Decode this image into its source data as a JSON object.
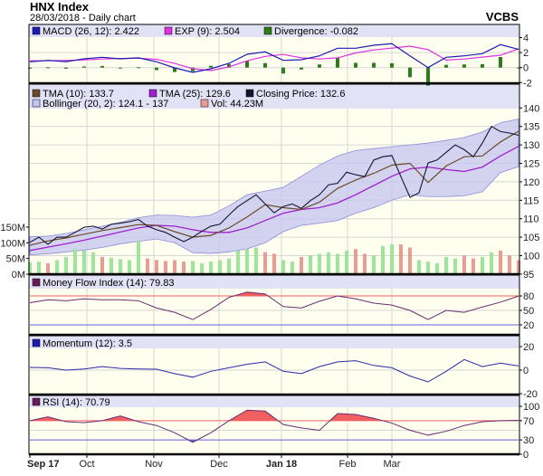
{
  "header": {
    "title": "HNX Index",
    "subtitle": "28/03/2018 - Daily chart",
    "brand": "VCBS"
  },
  "legends": {
    "macd": "MACD (26, 12): 2.422",
    "exp": "EXP (9): 2.504",
    "divergence": "Divergence: -0.082",
    "tma10": "TMA (10): 133.7",
    "tma25": "TMA (25): 129.6",
    "close": "Closing Price: 132.6",
    "bollinger": "Bollinger (20, 2): 124.1 - 137",
    "vol": "Vol: 44.23M",
    "mfi": "Money Flow Index (14): 79.83",
    "momentum": "Momentum (12): 3.5",
    "rsi": "RSI (14): 70.79"
  },
  "colors": {
    "plot_bg": "#fffff0",
    "header_bg": "#e2e2f6",
    "grid": "#d6d6d6",
    "macd": "#1c1cb0",
    "exp": "#e030e0",
    "divergence": "#2e7d18",
    "tma10": "#6b4a2a",
    "tma25": "#a020d0",
    "close": "#141432",
    "bollinger_fill": "#c4c4f0",
    "bollinger_edge": "#8c8cdc",
    "vol_up": "#9be69b",
    "vol_down": "#ea9c92",
    "indicator_line": "#6a2c70",
    "momentum_line": "#2a2aa8",
    "overbought": "#f06060",
    "oversold": "#6060e0"
  },
  "chart_data": {
    "type": "line",
    "x_ticks": [
      {
        "label": "Sep 17",
        "index": 0,
        "bold": true
      },
      {
        "label": "Oct",
        "index": 6.3
      },
      {
        "label": "Nov",
        "index": 13.7
      },
      {
        "label": "Dec",
        "index": 20.9
      },
      {
        "label": "Jan 18",
        "index": 27.8,
        "bold": true
      },
      {
        "label": "Feb",
        "index": 35.1
      },
      {
        "label": "Mar",
        "index": 40
      }
    ],
    "macd_panel": {
      "yticks": [
        "4",
        "2",
        "0",
        "-2"
      ],
      "ylim": [
        -2,
        4.2
      ],
      "macd": [
        0.77,
        0.96,
        0.8,
        1.17,
        1.37,
        1.17,
        1.3,
        0.77,
        -0.04,
        -0.64,
        -0.16,
        0.57,
        1.77,
        2.1,
        0.96,
        1.05,
        1.57,
        2.58,
        2.58,
        2.98,
        3.18,
        1.57,
        0,
        1.37,
        1.57,
        1.85,
        3.06,
        2.422
      ],
      "exp": [
        0.9,
        0.92,
        0.95,
        1.02,
        1.15,
        1.22,
        1.25,
        1.1,
        0.55,
        -0.15,
        -0.4,
        0.1,
        0.9,
        1.5,
        1.75,
        1.3,
        1.15,
        1.3,
        1.95,
        2.35,
        2.6,
        2.85,
        2.4,
        1.0,
        1.15,
        1.4,
        1.65,
        2.504
      ],
      "divergence": [
        -0.13,
        0.04,
        -0.15,
        0.15,
        0.22,
        -0.05,
        0.05,
        -0.33,
        -0.59,
        -0.49,
        0.24,
        0.47,
        0.87,
        0.6,
        -0.79,
        -0.25,
        0.42,
        1.28,
        0.63,
        0.63,
        0.58,
        -1.28,
        -2.4,
        0.37,
        0.42,
        0.45,
        1.41,
        -0.082
      ]
    },
    "price_panel": {
      "yticks": [
        "140",
        "135",
        "130",
        "125",
        "120",
        "115",
        "110",
        "105",
        "100",
        "95"
      ],
      "ylim": [
        95,
        140
      ],
      "vol_ticks": [
        "150M",
        "100M",
        "50M",
        "0M"
      ],
      "vol_lim": [
        0,
        150
      ],
      "close": [
        103.6,
        105,
        103.1,
        105,
        105,
        106.3,
        107.7,
        108,
        107.2,
        108.5,
        108.8,
        109.2,
        109.8,
        108,
        107,
        106.3,
        105,
        103.8,
        105,
        106.6,
        108,
        108.5,
        111,
        113.3,
        114.9,
        116.5,
        114,
        111.6,
        113.3,
        114,
        112.8,
        114.9,
        116.5,
        119.2,
        119.6,
        122.6,
        121.9,
        121.4,
        125.9,
        126.8,
        127.1,
        121.4,
        115.8,
        117,
        125.1,
        125.9,
        128,
        130,
        128.7,
        126.8,
        130.5,
        135,
        133.6,
        133.2,
        132.6
      ],
      "volume_m": [
        38,
        40,
        35,
        45,
        55,
        80,
        75,
        70,
        55,
        52,
        48,
        45,
        105,
        50,
        45,
        42,
        45,
        40,
        42,
        35,
        40,
        45,
        50,
        75,
        80,
        85,
        70,
        65,
        45,
        40,
        55,
        60,
        65,
        70,
        65,
        75,
        80,
        65,
        60,
        90,
        95,
        95,
        85,
        45,
        40,
        35,
        55,
        50,
        60,
        50,
        55,
        70,
        75,
        60,
        44.23
      ],
      "tma10": [
        102.8,
        104,
        104.8,
        105.8,
        106.8,
        107.6,
        108.4,
        108.2,
        106.5,
        105,
        105.5,
        107.5,
        110.5,
        113.8,
        113,
        112.5,
        114.5,
        118.2,
        120.5,
        122.3,
        124.5,
        125,
        119.8,
        124.3,
        126.8,
        127,
        130.8,
        133.7
      ],
      "tma25": [
        101.4,
        102.3,
        103.2,
        104.2,
        105.3,
        106.4,
        107.5,
        108.2,
        108,
        107,
        106.3,
        106.3,
        107.5,
        109.5,
        111.5,
        112.5,
        113,
        114.3,
        116.5,
        119,
        121.5,
        123.5,
        124,
        123.3,
        122.8,
        124,
        127,
        129.6
      ],
      "bollinger_upper": [
        105.1,
        105.3,
        106,
        107,
        108,
        109,
        110.3,
        111,
        110.9,
        110.4,
        111,
        113.5,
        116.5,
        117.5,
        118.5,
        121.5,
        124.5,
        127,
        128.5,
        129,
        129.5,
        130,
        130.5,
        131.2,
        132,
        133.5,
        136,
        137
      ],
      "bollinger_lower": [
        100.2,
        100.5,
        101,
        101.5,
        102.2,
        103.2,
        103.9,
        104.5,
        103.5,
        100.8,
        100.6,
        101,
        101.8,
        103.5,
        106.5,
        108.2,
        108.8,
        109.5,
        111.5,
        113,
        115,
        116.5,
        116,
        116,
        116.2,
        117.3,
        122.5,
        124.1
      ]
    },
    "mfi_panel": {
      "yticks": [
        "80",
        "50",
        "20"
      ],
      "overbought": 80,
      "oversold": 20,
      "values": [
        66,
        72,
        70,
        74,
        72,
        72,
        70,
        55,
        46,
        31,
        52,
        77,
        88,
        84,
        58,
        55,
        69,
        80,
        74,
        65,
        61,
        50,
        31,
        50,
        46,
        57,
        67,
        79.83
      ]
    },
    "momentum_panel": {
      "yticks": [
        "20",
        "0",
        "-20"
      ],
      "ylim": [
        -20,
        20
      ],
      "values": [
        2.3,
        2,
        0,
        1,
        3,
        1.5,
        1,
        0.8,
        -3,
        -6,
        -1,
        2,
        5,
        7,
        -1,
        -3,
        3,
        7,
        8,
        4,
        2,
        -5,
        -10,
        -1,
        9,
        3,
        6,
        3.5
      ]
    },
    "rsi_panel": {
      "yticks": [
        "100",
        "70",
        "30",
        "0"
      ],
      "overbought": 70,
      "oversold": 30,
      "values": [
        70,
        78,
        68,
        66,
        70,
        80,
        68,
        60,
        45,
        25,
        45,
        70,
        92,
        90,
        62,
        55,
        50,
        85,
        83,
        75,
        65,
        50,
        40,
        48,
        60,
        68,
        70,
        70.79
      ]
    }
  }
}
